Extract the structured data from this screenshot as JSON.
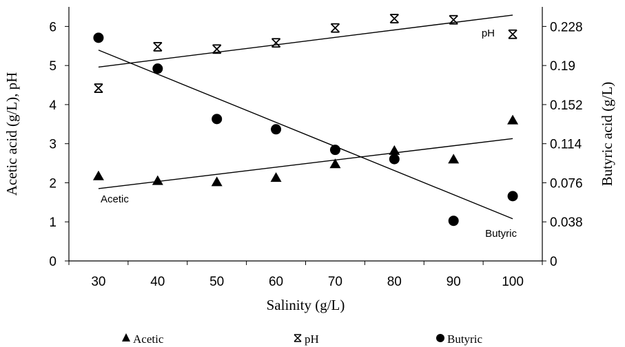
{
  "chart_data": {
    "type": "scatter",
    "xlabel": "Salinity (g/L)",
    "ylabel_left": "Acetic acid (g/L), pH",
    "ylabel_right": "Butyric acid (g/L)",
    "x_ticks": [
      "30",
      "40",
      "50",
      "60",
      "70",
      "80",
      "90",
      "100"
    ],
    "x_values": [
      30,
      40,
      50,
      60,
      70,
      80,
      90,
      100
    ],
    "xlim": [
      25,
      105
    ],
    "y_left_ticks": [
      "0",
      "1",
      "2",
      "3",
      "4",
      "5",
      "6"
    ],
    "ylim_left": [
      0,
      6.5
    ],
    "y_right_ticks": [
      "0",
      "0.038",
      "0.076",
      "0.114",
      "0.152",
      "0.19",
      "0.228"
    ],
    "ylim_right": [
      0,
      0.247
    ],
    "grid": false,
    "legend_position": "bottom",
    "series": [
      {
        "name": "Acetic",
        "axis": "left",
        "marker": "triangle",
        "values": [
          2.17,
          2.05,
          2.02,
          2.13,
          2.48,
          2.82,
          2.6,
          3.6
        ],
        "trendline": {
          "x": [
            30,
            100
          ],
          "y": [
            1.85,
            3.13
          ]
        },
        "annotation": "Acetic"
      },
      {
        "name": "pH",
        "axis": "left",
        "marker": "asterisk",
        "values": [
          4.42,
          5.48,
          5.42,
          5.58,
          5.96,
          6.2,
          6.17,
          5.8
        ],
        "trendline": {
          "x": [
            30,
            100
          ],
          "y": [
            4.96,
            6.29
          ]
        },
        "annotation": "pH"
      },
      {
        "name": "Butyric",
        "axis": "right",
        "marker": "circle",
        "values": [
          0.217,
          0.187,
          0.138,
          0.128,
          0.108,
          0.099,
          0.039,
          0.063
        ],
        "trendline": {
          "x": [
            30,
            100
          ],
          "y": [
            0.205,
            0.041
          ]
        },
        "annotation": "Butyric"
      }
    ]
  }
}
